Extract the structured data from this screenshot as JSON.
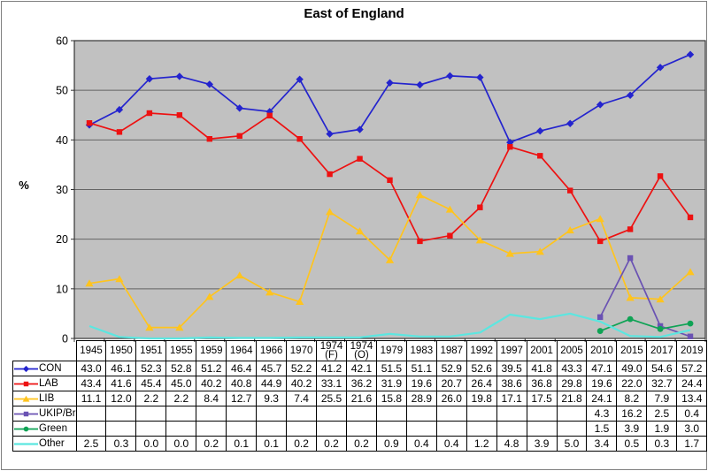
{
  "chart_data": {
    "type": "line",
    "title": "East of England",
    "ylabel": "%",
    "ylim": [
      0,
      60
    ],
    "yticks": [
      0,
      10,
      20,
      30,
      40,
      50,
      60
    ],
    "grid": true,
    "legend_position": "table-left",
    "plot_bg": "#c1c1c1",
    "gridline_color": "#646464",
    "axis_color": "#333333",
    "categories": [
      "1945",
      "1950",
      "1951",
      "1955",
      "1959",
      "1964",
      "1966",
      "1970",
      "1974 (F)",
      "1974 (O)",
      "1979",
      "1983",
      "1987",
      "1992",
      "1997",
      "2001",
      "2005",
      "2010",
      "2015",
      "2017",
      "2019"
    ],
    "series": [
      {
        "name": "CON",
        "color": "#2424ce",
        "marker": "diamond",
        "values": [
          43.0,
          46.1,
          52.3,
          52.8,
          51.2,
          46.4,
          45.7,
          52.2,
          41.2,
          42.1,
          51.5,
          51.1,
          52.9,
          52.6,
          39.5,
          41.8,
          43.3,
          47.1,
          49.0,
          54.6,
          57.2
        ]
      },
      {
        "name": "LAB",
        "color": "#ed1111",
        "marker": "square",
        "values": [
          43.4,
          41.6,
          45.4,
          45.0,
          40.2,
          40.8,
          44.9,
          40.2,
          33.1,
          36.2,
          31.9,
          19.6,
          20.7,
          26.4,
          38.6,
          36.8,
          29.8,
          19.6,
          22.0,
          32.7,
          24.4
        ]
      },
      {
        "name": "LIB",
        "color": "#ffc41e",
        "marker": "triangle",
        "values": [
          11.1,
          12.0,
          2.2,
          2.2,
          8.4,
          12.7,
          9.3,
          7.4,
          25.5,
          21.6,
          15.8,
          28.9,
          26.0,
          19.8,
          17.1,
          17.5,
          21.8,
          24.1,
          8.2,
          7.9,
          13.4
        ]
      },
      {
        "name": "UKIP/Br",
        "color": "#6a52b3",
        "marker": "square",
        "values": [
          null,
          null,
          null,
          null,
          null,
          null,
          null,
          null,
          null,
          null,
          null,
          null,
          null,
          null,
          null,
          null,
          null,
          4.3,
          16.2,
          2.5,
          0.4
        ]
      },
      {
        "name": "Green",
        "color": "#0fa355",
        "marker": "circle",
        "values": [
          null,
          null,
          null,
          null,
          null,
          null,
          null,
          null,
          null,
          null,
          null,
          null,
          null,
          null,
          null,
          null,
          null,
          1.5,
          3.9,
          1.9,
          3.0
        ]
      },
      {
        "name": "Other",
        "color": "#5ce6e0",
        "marker": "none",
        "values": [
          2.5,
          0.3,
          0.0,
          0.0,
          0.2,
          0.1,
          0.1,
          0.2,
          0.2,
          0.2,
          0.9,
          0.4,
          0.4,
          1.2,
          4.8,
          3.9,
          5.0,
          3.4,
          0.5,
          0.3,
          1.7
        ]
      }
    ]
  }
}
